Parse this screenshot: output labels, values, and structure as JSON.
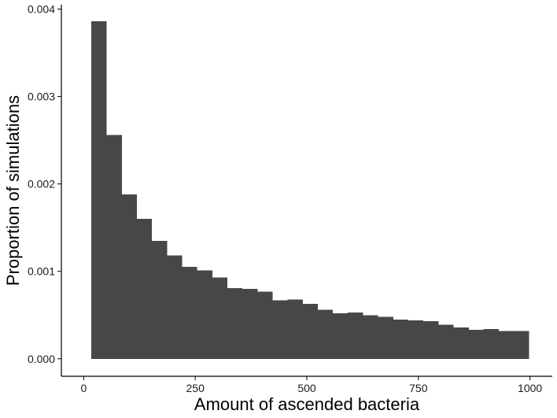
{
  "chart_data": {
    "type": "bar",
    "subtype": "histogram",
    "xlabel": "Amount of ascended bacteria",
    "ylabel": "Proportion of simulations",
    "xlim": [
      -50,
      1050
    ],
    "ylim": [
      -0.0002,
      0.00405
    ],
    "x_ticks": [
      0,
      250,
      500,
      750,
      1000
    ],
    "x_tick_labels": [
      "0",
      "250",
      "500",
      "750",
      "1000"
    ],
    "y_ticks": [
      0,
      0.001,
      0.002,
      0.003,
      0.004
    ],
    "y_tick_labels": [
      "0.000",
      "0.001",
      "0.002",
      "0.003",
      "0.004"
    ],
    "bin_width": 33.8,
    "bins_start": [
      17,
      50.8,
      84.6,
      118.4,
      152.2,
      186,
      219.8,
      253.6,
      287.4,
      321.2,
      355,
      388.8,
      422.6,
      456.4,
      490.2,
      524,
      557.8,
      591.6,
      625.4,
      659.2,
      693,
      726.8,
      760.6,
      794.4,
      828.2,
      862,
      895.8,
      929.6,
      963.4
    ],
    "values": [
      0.00386,
      0.00256,
      0.00188,
      0.0016,
      0.00135,
      0.00118,
      0.00105,
      0.00101,
      0.00093,
      0.00081,
      0.0008,
      0.00077,
      0.00067,
      0.00068,
      0.00063,
      0.00056,
      0.00052,
      0.00053,
      0.0005,
      0.00048,
      0.00045,
      0.00044,
      0.00043,
      0.00039,
      0.00036,
      0.00033,
      0.00034,
      0.00032,
      0.00032
    ],
    "bar_color": "#474747",
    "grid": false,
    "legend": "none"
  }
}
